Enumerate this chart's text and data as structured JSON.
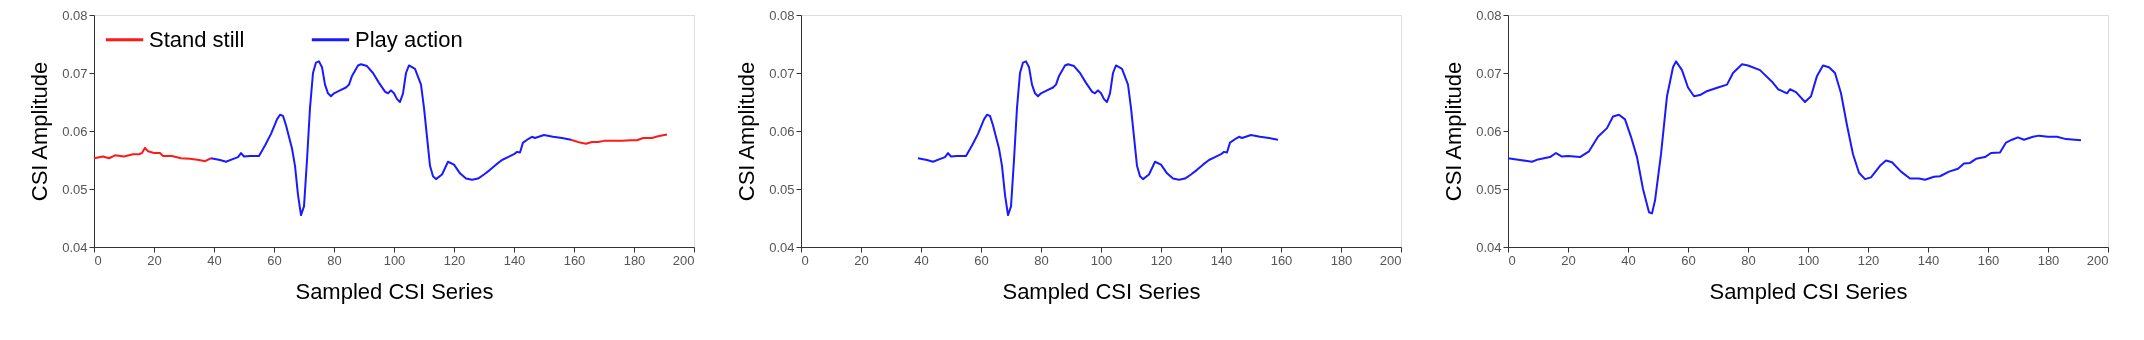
{
  "chart_data": [
    {
      "type": "line",
      "xlabel": "Sampled CSI Series",
      "ylabel": "CSI Amplitude",
      "xlim": [
        0,
        200
      ],
      "xticks": [
        0,
        20,
        40,
        60,
        80,
        100,
        120,
        140,
        160,
        180,
        200
      ],
      "ylim": [
        0.04,
        0.08
      ],
      "yticks": [
        0.04,
        0.05,
        0.06,
        0.07,
        0.08
      ],
      "grid": false,
      "legend": "top",
      "line_style": "solid",
      "series": [
        {
          "name": "Stand still",
          "color": "#ff1a1a",
          "x": [
            0,
            3,
            5,
            7,
            10,
            13,
            15,
            16,
            17,
            18,
            20,
            22,
            23,
            26,
            29,
            32,
            35,
            37,
            39,
            100,
            159,
            162,
            164,
            166,
            168,
            170,
            173,
            176,
            179,
            181,
            183,
            186,
            188,
            191
          ],
          "values": [
            0.0553,
            0.0556,
            0.0553,
            0.0558,
            0.0556,
            0.056,
            0.056,
            0.0562,
            0.0571,
            0.0565,
            0.0562,
            0.0562,
            0.0557,
            0.0557,
            0.0553,
            0.0552,
            0.055,
            0.0548,
            0.0553,
            null,
            0.0585,
            0.058,
            0.0578,
            0.0581,
            0.0581,
            0.0583,
            0.0583,
            0.0583,
            0.0584,
            0.0584,
            0.0588,
            0.0588,
            0.0591,
            0.0594
          ]
        },
        {
          "name": "Play action",
          "color": "#1a1aff",
          "x": [
            39,
            42,
            44,
            46,
            48,
            49,
            50,
            52,
            55,
            57,
            59,
            61,
            62,
            63,
            64,
            66,
            67,
            68,
            69,
            70,
            71,
            72,
            73,
            74,
            75,
            76,
            77,
            78,
            79,
            80,
            82,
            84,
            85,
            86,
            88,
            89,
            91,
            93,
            95,
            97,
            98,
            99,
            100,
            101,
            102,
            103,
            104,
            105,
            107,
            109,
            110,
            111,
            112,
            113,
            114,
            116,
            118,
            120,
            122,
            124,
            126,
            128,
            130,
            132,
            134,
            136,
            138,
            140,
            141,
            142,
            143,
            145,
            146,
            147,
            150,
            153,
            156,
            159
          ],
          "values": [
            0.0553,
            0.055,
            0.0547,
            0.0551,
            0.0555,
            0.0562,
            0.0556,
            0.0557,
            0.0557,
            0.0575,
            0.0595,
            0.062,
            0.0628,
            0.0626,
            0.061,
            0.057,
            0.054,
            0.049,
            0.0455,
            0.047,
            0.055,
            0.064,
            0.07,
            0.0718,
            0.072,
            0.071,
            0.068,
            0.0665,
            0.066,
            0.0665,
            0.067,
            0.0675,
            0.068,
            0.0695,
            0.0713,
            0.0715,
            0.0712,
            0.07,
            0.0683,
            0.0668,
            0.0665,
            0.067,
            0.0665,
            0.0655,
            0.065,
            0.0665,
            0.07,
            0.0713,
            0.0707,
            0.068,
            0.064,
            0.059,
            0.054,
            0.0522,
            0.0517,
            0.0525,
            0.0547,
            0.0542,
            0.0527,
            0.0518,
            0.0516,
            0.0518,
            0.0525,
            0.0533,
            0.0542,
            0.055,
            0.0555,
            0.056,
            0.0564,
            0.0563,
            0.058,
            0.0587,
            0.059,
            0.0588,
            0.0593,
            0.059,
            0.0588,
            0.0585
          ]
        }
      ]
    },
    {
      "type": "line",
      "xlabel": "Sampled CSI Series",
      "ylabel": "CSI Amplitude",
      "xlim": [
        0,
        200
      ],
      "xticks": [
        0,
        20,
        40,
        60,
        80,
        100,
        120,
        140,
        160,
        180,
        200
      ],
      "ylim": [
        0.04,
        0.08
      ],
      "yticks": [
        0.04,
        0.05,
        0.06,
        0.07,
        0.08
      ],
      "grid": false,
      "line_style": "solid",
      "series": [
        {
          "color": "#1a1aff",
          "x": [
            39,
            42,
            44,
            46,
            48,
            49,
            50,
            52,
            55,
            57,
            59,
            61,
            62,
            63,
            64,
            66,
            67,
            68,
            69,
            70,
            71,
            72,
            73,
            74,
            75,
            76,
            77,
            78,
            79,
            80,
            82,
            84,
            85,
            86,
            88,
            89,
            91,
            93,
            95,
            97,
            98,
            99,
            100,
            101,
            102,
            103,
            104,
            105,
            107,
            109,
            110,
            111,
            112,
            113,
            114,
            116,
            118,
            120,
            122,
            124,
            126,
            128,
            130,
            132,
            134,
            136,
            138,
            140,
            141,
            142,
            143,
            145,
            146,
            147,
            150,
            153,
            156,
            159
          ],
          "values": [
            0.0553,
            0.055,
            0.0547,
            0.0551,
            0.0555,
            0.0562,
            0.0556,
            0.0557,
            0.0557,
            0.0575,
            0.0595,
            0.062,
            0.0628,
            0.0626,
            0.061,
            0.057,
            0.054,
            0.049,
            0.0455,
            0.047,
            0.055,
            0.064,
            0.07,
            0.0718,
            0.072,
            0.071,
            0.068,
            0.0665,
            0.066,
            0.0665,
            0.067,
            0.0675,
            0.068,
            0.0695,
            0.0713,
            0.0715,
            0.0712,
            0.07,
            0.0683,
            0.0668,
            0.0665,
            0.067,
            0.0665,
            0.0655,
            0.065,
            0.0665,
            0.07,
            0.0713,
            0.0707,
            0.068,
            0.064,
            0.059,
            0.054,
            0.0522,
            0.0517,
            0.0525,
            0.0547,
            0.0542,
            0.0527,
            0.0518,
            0.0516,
            0.0518,
            0.0525,
            0.0533,
            0.0542,
            0.055,
            0.0555,
            0.056,
            0.0564,
            0.0563,
            0.058,
            0.0587,
            0.059,
            0.0588,
            0.0593,
            0.059,
            0.0588,
            0.0585
          ]
        }
      ]
    },
    {
      "type": "line",
      "xlabel": "Sampled CSI Series",
      "ylabel": "CSI Amplitude",
      "xlim": [
        0,
        200
      ],
      "xticks": [
        0,
        20,
        40,
        60,
        80,
        100,
        120,
        140,
        160,
        180,
        200
      ],
      "ylim": [
        0.04,
        0.08
      ],
      "yticks": [
        0.04,
        0.05,
        0.06,
        0.07,
        0.08
      ],
      "grid": false,
      "line_style": "solid",
      "series": [
        {
          "color": "#1a1aff",
          "x": [
            0,
            4,
            8,
            10,
            14,
            16,
            18,
            20,
            24,
            27,
            30,
            33,
            35,
            37,
            39,
            41,
            43,
            45,
            47,
            48,
            49,
            51,
            53,
            55,
            56,
            58,
            60,
            62,
            64,
            66,
            70,
            73,
            75,
            78,
            80,
            84,
            88,
            90,
            93,
            94,
            96,
            99,
            101,
            103,
            105,
            107,
            109,
            111,
            113,
            115,
            117,
            119,
            121,
            124,
            126,
            128,
            131,
            134,
            137,
            139,
            142,
            144,
            147,
            150,
            152,
            154,
            156,
            159,
            161,
            164,
            166,
            168,
            170,
            172,
            175,
            177,
            180,
            183,
            186,
            191
          ],
          "values": [
            0.0553,
            0.055,
            0.0547,
            0.0551,
            0.0555,
            0.0562,
            0.0556,
            0.0557,
            0.0555,
            0.0565,
            0.059,
            0.0605,
            0.0625,
            0.0628,
            0.062,
            0.059,
            0.0555,
            0.05,
            0.046,
            0.0458,
            0.048,
            0.056,
            0.066,
            0.071,
            0.072,
            0.0705,
            0.0675,
            0.066,
            0.0662,
            0.0668,
            0.0675,
            0.068,
            0.07,
            0.0715,
            0.0713,
            0.0705,
            0.0685,
            0.0672,
            0.0665,
            0.0672,
            0.0667,
            0.065,
            0.066,
            0.0695,
            0.0713,
            0.071,
            0.07,
            0.0665,
            0.061,
            0.056,
            0.0528,
            0.0517,
            0.052,
            0.054,
            0.0549,
            0.0546,
            0.053,
            0.0518,
            0.0518,
            0.0516,
            0.0521,
            0.0522,
            0.053,
            0.0535,
            0.0544,
            0.0545,
            0.0552,
            0.0555,
            0.0562,
            0.0563,
            0.058,
            0.0585,
            0.0589,
            0.0585,
            0.059,
            0.0592,
            0.059,
            0.059,
            0.0586,
            0.0584
          ]
        }
      ]
    }
  ]
}
